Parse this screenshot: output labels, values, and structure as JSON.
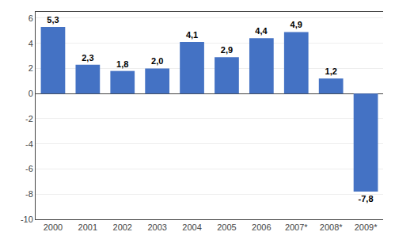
{
  "chart_data": {
    "type": "bar",
    "categories": [
      "2000",
      "2001",
      "2002",
      "2003",
      "2004",
      "2005",
      "2006",
      "2007*",
      "2008*",
      "2009*"
    ],
    "values": [
      5.3,
      2.3,
      1.8,
      2.0,
      4.1,
      2.9,
      4.4,
      4.9,
      1.2,
      -7.8
    ],
    "value_labels": [
      "5,3",
      "2,3",
      "1,8",
      "2,0",
      "4,1",
      "2,9",
      "4,4",
      "4,9",
      "1,2",
      "-7,8"
    ],
    "data_labels": true,
    "color": "#4472C4",
    "ylim": [
      -10,
      6.5
    ],
    "yticks": [
      -10,
      -8,
      -6,
      -4,
      -2,
      0,
      2,
      4,
      6
    ],
    "grid": true
  }
}
